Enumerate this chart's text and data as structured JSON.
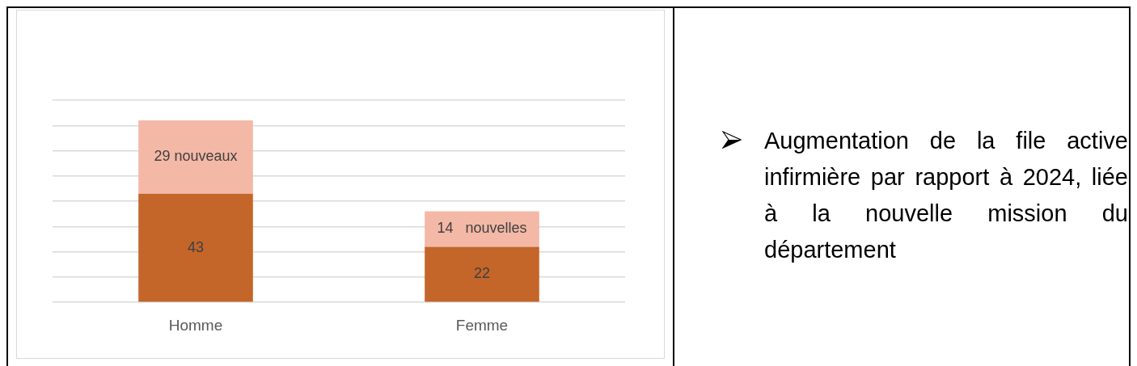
{
  "chart_data": [
    {
      "type": "bar",
      "stacked": true,
      "categories": [
        "Homme",
        "Femme"
      ],
      "series": [
        {
          "color": "#c4652a",
          "values": [
            43,
            22
          ],
          "value_labels": [
            "43",
            "22"
          ]
        },
        {
          "color": "#f4b8a6",
          "values": [
            29,
            14
          ],
          "value_labels": [
            "29 nouveaux",
            "14   nouvelles"
          ]
        }
      ],
      "ylim": [
        0,
        80
      ],
      "yticks": [
        {
          "value": 0,
          "label": null
        },
        {
          "value": 10,
          "label": null
        },
        {
          "value": 20,
          "label": null
        },
        {
          "value": 30,
          "label": null
        },
        {
          "value": 40,
          "label": null
        },
        {
          "value": 50,
          "label": null
        },
        {
          "value": 60,
          "label": null
        },
        {
          "value": 70,
          "label": null
        },
        {
          "value": 80,
          "label": null
        }
      ],
      "grid": "y",
      "tick_labels": "x"
    },
    {
      "type": "other",
      "annotations": [
        "Augmentation de la file active infirmière par rapport à 2024, liée à la nouvelle mission du département"
      ]
    }
  ]
}
